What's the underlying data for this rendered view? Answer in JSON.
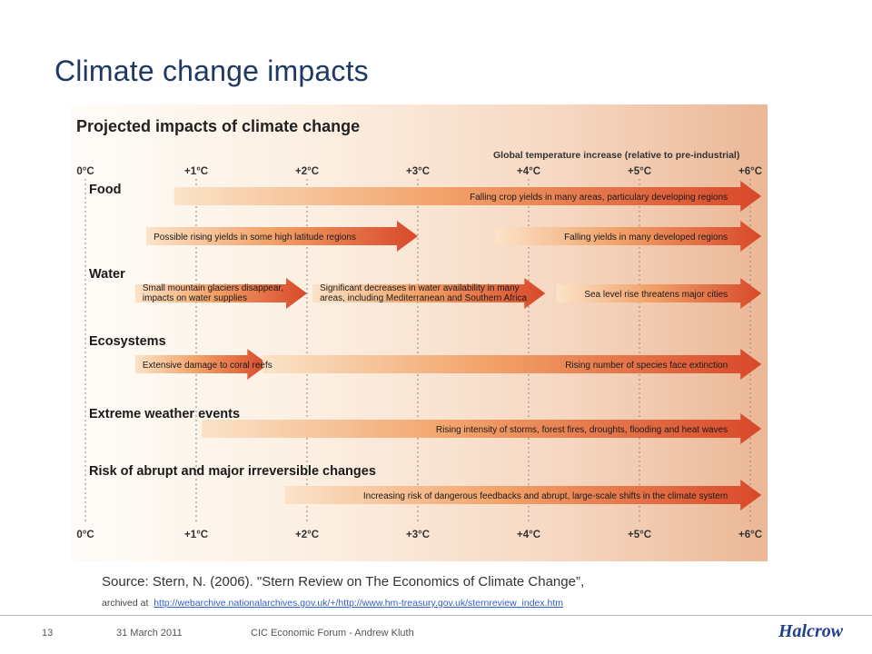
{
  "slide": {
    "title": "Climate change impacts"
  },
  "diagram": {
    "title": "Projected impacts of climate change",
    "axis_label": "Global temperature increase (relative to pre-industrial)",
    "ticks": [
      "0°C",
      "+1°C",
      "+2°C",
      "+3°C",
      "+4°C",
      "+5°C",
      "+6°C"
    ],
    "categories": [
      {
        "id": "food",
        "label": "Food"
      },
      {
        "id": "water",
        "label": "Water"
      },
      {
        "id": "ecosystems",
        "label": "Ecosystems"
      },
      {
        "id": "extreme",
        "label": "Extreme weather events"
      },
      {
        "id": "abrupt",
        "label": "Risk of abrupt and major irreversible changes"
      }
    ],
    "arrows": [
      {
        "name": "food-crop-yields-arrow",
        "row": 0,
        "start": 0.8,
        "end": 6.1,
        "lines": [
          "Falling crop yields in many areas, particulary developing regions"
        ]
      },
      {
        "name": "food-rising-yields-arrow",
        "row": 1,
        "start": 0.55,
        "end": 3.0,
        "lines": [
          "Possible rising yields in some high latitude regions"
        ]
      },
      {
        "name": "food-falling-yields-arrow",
        "row": 1,
        "start": 3.7,
        "end": 6.1,
        "lines": [
          "Falling yields in many developed regions"
        ]
      },
      {
        "name": "water-glaciers-arrow",
        "row": 2,
        "start": 0.45,
        "end": 2.0,
        "lines": [
          "Small mountain glaciers disappear,",
          "impacts on water supplies"
        ]
      },
      {
        "name": "water-availability-arrow",
        "row": 2,
        "start": 2.05,
        "end": 4.15,
        "lines": [
          "Significant decreases in water availability in many",
          "areas, including Mediterranean and Southern Africa"
        ]
      },
      {
        "name": "water-sea-level-arrow",
        "row": 2,
        "start": 4.25,
        "end": 6.1,
        "lines": [
          "Sea level rise threatens major cities"
        ]
      },
      {
        "name": "eco-coral-arrow",
        "row": 3,
        "start": 0.45,
        "end": 1.65,
        "lines": [
          "Extensive damage to coral reefs"
        ]
      },
      {
        "name": "eco-extinction-arrow",
        "row": 3,
        "start": 1.6,
        "end": 6.1,
        "lines": [
          "Rising number of species face extinction"
        ]
      },
      {
        "name": "extreme-storms-arrow",
        "row": 4,
        "start": 1.05,
        "end": 6.1,
        "lines": [
          "Rising intensity of storms, forest fires, droughts, flooding and heat waves"
        ]
      },
      {
        "name": "abrupt-feedbacks-arrow",
        "row": 5,
        "start": 1.8,
        "end": 6.1,
        "lines": [
          "Increasing risk of dangerous feedbacks and abrupt, large-scale shifts in the climate system"
        ]
      }
    ]
  },
  "source": {
    "citation": "Source: Stern, N. (2006). \"Stern Review on The Economics of Climate Change”,",
    "archived_prefix": "archived at",
    "url": "http://webarchive.nationalarchives.gov.uk/+/http://www.hm-treasury.gov.uk/sternreview_index.htm"
  },
  "footer": {
    "page_number": "13",
    "date": "31 March 2011",
    "event": "CIC Economic Forum - Andrew Kluth",
    "brand": "Halcrow"
  },
  "colors": {
    "title": "#1f3864",
    "arrow_start": "#fbe3c8",
    "arrow_mid": "#f2a36a",
    "arrow_end": "#d8482a",
    "text": "#1a1a1a"
  }
}
